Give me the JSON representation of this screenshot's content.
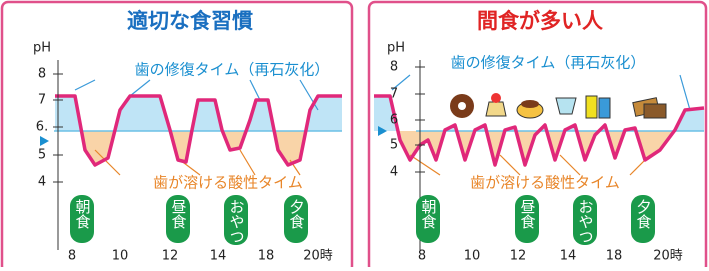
{
  "panels": [
    {
      "title": "適切な食習慣",
      "y_axis_label": "pH",
      "y_ticks": [
        "8",
        "7",
        "6.",
        "5",
        "4"
      ],
      "recovery_label": "歯の修復タイム（再石灰化）",
      "acid_label": "歯が溶ける酸性タイム",
      "meals": [
        "朝食",
        "昼食",
        "おやつ",
        "夕食"
      ],
      "x_ticks": [
        "8",
        "10",
        "12",
        "14",
        "18",
        "20時"
      ]
    },
    {
      "title": "間食が多い人",
      "y_axis_label": "pH",
      "y_ticks": [
        "8",
        "7",
        "6",
        "5",
        "4"
      ],
      "recovery_label": "歯の修復タイム（再石灰化）",
      "acid_label": "歯が溶ける酸性タイム",
      "meals": [
        "朝食",
        "昼食",
        "おやつ",
        "夕食"
      ],
      "x_ticks": [
        "8",
        "10",
        "12",
        "14",
        "18",
        "20時"
      ]
    }
  ]
}
